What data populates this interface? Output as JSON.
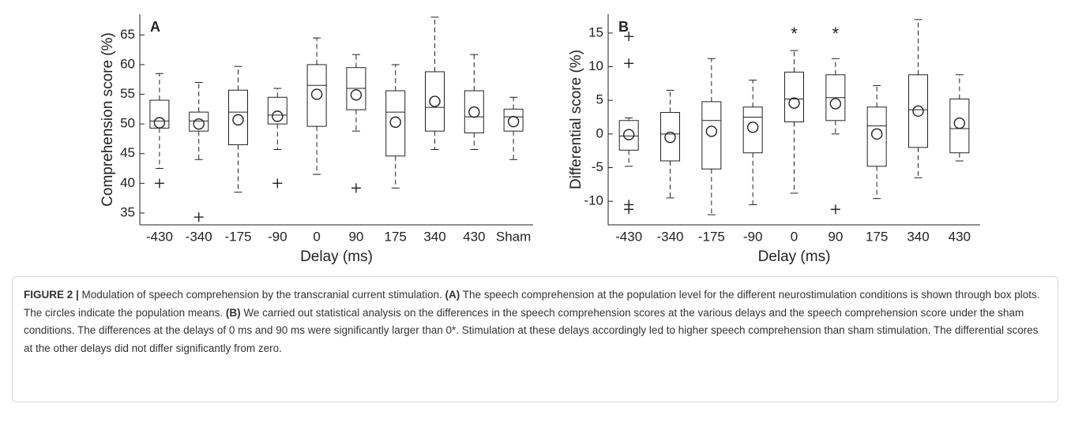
{
  "chart_data": [
    {
      "type": "box",
      "panel_label": "A",
      "ylabel": "Comprehension score (%)",
      "xlabel": "Delay (ms)",
      "categories": [
        "-430",
        "-340",
        "-175",
        "-90",
        "0",
        "90",
        "175",
        "340",
        "430",
        "Sham"
      ],
      "boxes": [
        {
          "whisker_low": 42.5,
          "q1": 49.3,
          "median": 50.5,
          "q3": 54,
          "whisker_high": 58.5,
          "mean": 50.2,
          "outliers": [
            40
          ]
        },
        {
          "whisker_low": 44,
          "q1": 48.8,
          "median": 50.5,
          "q3": 52,
          "whisker_high": 57,
          "mean": 50,
          "outliers": [
            34.3
          ]
        },
        {
          "whisker_low": 38.5,
          "q1": 46.5,
          "median": 52,
          "q3": 55.7,
          "whisker_high": 59.7,
          "mean": 50.7,
          "outliers": []
        },
        {
          "whisker_low": 45.7,
          "q1": 50,
          "median": 51.5,
          "q3": 54.5,
          "whisker_high": 56,
          "mean": 51.3,
          "outliers": [
            40
          ]
        },
        {
          "whisker_low": 41.5,
          "q1": 49.6,
          "median": 56.5,
          "q3": 60,
          "whisker_high": 64.5,
          "mean": 55,
          "outliers": []
        },
        {
          "whisker_low": 48.8,
          "q1": 52.4,
          "median": 56,
          "q3": 59.5,
          "whisker_high": 61.7,
          "mean": 54.9,
          "outliers": [
            39.2
          ]
        },
        {
          "whisker_low": 39.2,
          "q1": 44.6,
          "median": 52,
          "q3": 55.6,
          "whisker_high": 60,
          "mean": 50.3,
          "outliers": []
        },
        {
          "whisker_low": 45.7,
          "q1": 48.8,
          "median": 52.8,
          "q3": 58.8,
          "whisker_high": 68,
          "mean": 53.8,
          "outliers": []
        },
        {
          "whisker_low": 45.7,
          "q1": 48.5,
          "median": 51.2,
          "q3": 55.6,
          "whisker_high": 61.7,
          "mean": 52,
          "outliers": []
        },
        {
          "whisker_low": 44,
          "q1": 48.8,
          "median": 51.2,
          "q3": 52.5,
          "whisker_high": 54.5,
          "mean": 50.4,
          "outliers": []
        }
      ],
      "ylim": [
        33,
        68.5
      ],
      "yticks": [
        35,
        40,
        45,
        50,
        55,
        60,
        65
      ]
    },
    {
      "type": "box",
      "panel_label": "B",
      "ylabel": "Differential score (%)",
      "xlabel": "Delay (ms)",
      "categories": [
        "-430",
        "-340",
        "-175",
        "-90",
        "0",
        "90",
        "175",
        "340",
        "430"
      ],
      "significance_marks": [
        null,
        null,
        null,
        null,
        "*",
        "*",
        null,
        null,
        null
      ],
      "boxes": [
        {
          "whisker_low": -4.8,
          "q1": -2.4,
          "median": -0.3,
          "q3": 2,
          "whisker_high": 2.4,
          "mean": -0.1,
          "outliers": [
            14.5,
            10.5,
            -10.5,
            -11.2
          ]
        },
        {
          "whisker_low": -9.5,
          "q1": -4,
          "median": 0,
          "q3": 3.2,
          "whisker_high": 6.5,
          "mean": -0.5,
          "outliers": []
        },
        {
          "whisker_low": -12,
          "q1": -5.2,
          "median": 2,
          "q3": 4.8,
          "whisker_high": 11.2,
          "mean": 0.4,
          "outliers": []
        },
        {
          "whisker_low": -10.5,
          "q1": -2.8,
          "median": 2.5,
          "q3": 4,
          "whisker_high": 8,
          "mean": 1,
          "outliers": []
        },
        {
          "whisker_low": -8.8,
          "q1": 1.8,
          "median": 5.2,
          "q3": 9.2,
          "whisker_high": 12.4,
          "mean": 4.6,
          "outliers": []
        },
        {
          "whisker_low": 0,
          "q1": 2,
          "median": 5.4,
          "q3": 8.8,
          "whisker_high": 11.2,
          "mean": 4.5,
          "outliers": [
            -11.2
          ]
        },
        {
          "whisker_low": -9.6,
          "q1": -4.8,
          "median": 1.2,
          "q3": 4,
          "whisker_high": 7.2,
          "mean": 0,
          "outliers": []
        },
        {
          "whisker_low": -6.5,
          "q1": -2,
          "median": 3.6,
          "q3": 8.8,
          "whisker_high": 17,
          "mean": 3.4,
          "outliers": []
        },
        {
          "whisker_low": -4,
          "q1": -2.8,
          "median": 0.8,
          "q3": 5.2,
          "whisker_high": 8.8,
          "mean": 1.6,
          "outliers": []
        }
      ],
      "ylim": [
        -13.5,
        17.8
      ],
      "yticks": [
        -10,
        -5,
        0,
        5,
        10,
        15
      ]
    }
  ],
  "caption": {
    "segments": [
      {
        "text": "FIGURE 2 |",
        "bold": true
      },
      {
        "text": " Modulation of speech comprehension by the transcranial current stimulation. ",
        "bold": false
      },
      {
        "text": "(A)",
        "bold": true
      },
      {
        "text": " The speech comprehension at the population level for the different neurostimulation conditions is shown through box plots. The circles indicate the population means. ",
        "bold": false
      },
      {
        "text": "(B)",
        "bold": true
      },
      {
        "text": " We carried out statistical analysis on the differences in the speech comprehension scores at the various delays and the speech comprehension score under the sham conditions. The differences at the delays of 0 ms and 90 ms were significantly larger than 0*. Stimulation at these delays accordingly led to higher speech comprehension than sham stimulation. The differential scores at the other delays did not differ significantly from zero.",
        "bold": false
      }
    ]
  }
}
